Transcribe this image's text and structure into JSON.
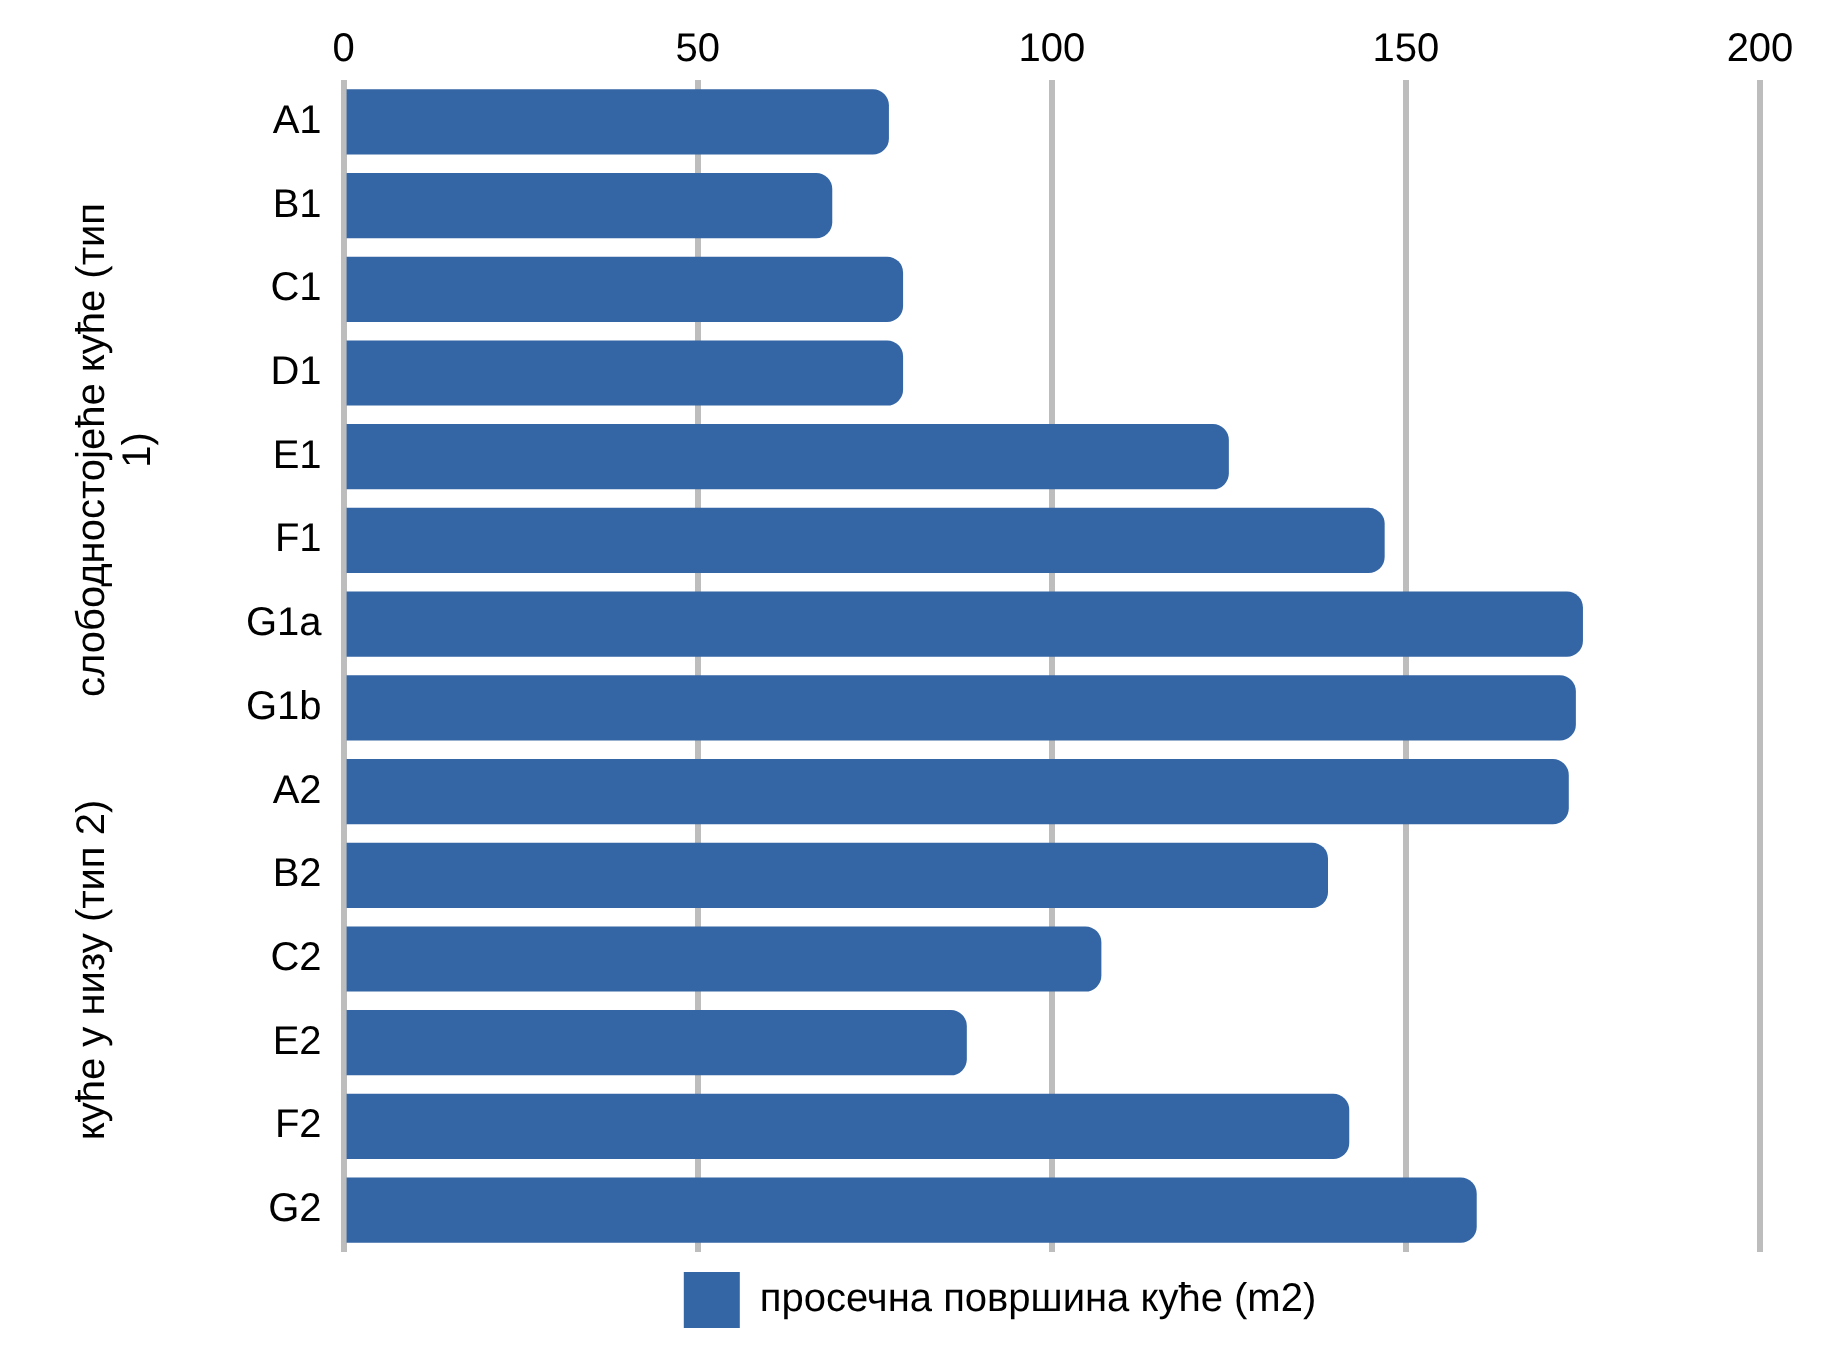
{
  "chart_data": {
    "type": "bar",
    "orientation": "horizontal",
    "categories": [
      "A1",
      "B1",
      "C1",
      "D1",
      "E1",
      "F1",
      "G1a",
      "G1b",
      "A2",
      "B2",
      "C2",
      "E2",
      "F2",
      "G2"
    ],
    "series": [
      {
        "name": "просечна површина куће (m2)",
        "color": "#3465a4",
        "values": [
          77,
          69,
          79,
          79,
          125,
          147,
          175,
          174,
          173,
          139,
          107,
          88,
          142,
          160
        ]
      }
    ],
    "xlim": [
      0,
      200
    ],
    "xticks": [
      0,
      50,
      100,
      150,
      200
    ],
    "grid": "x",
    "legend": "bottom",
    "annotations": [
      "слободностојеће куће (тип 1)",
      "куће у низу (тип 2)"
    ]
  }
}
